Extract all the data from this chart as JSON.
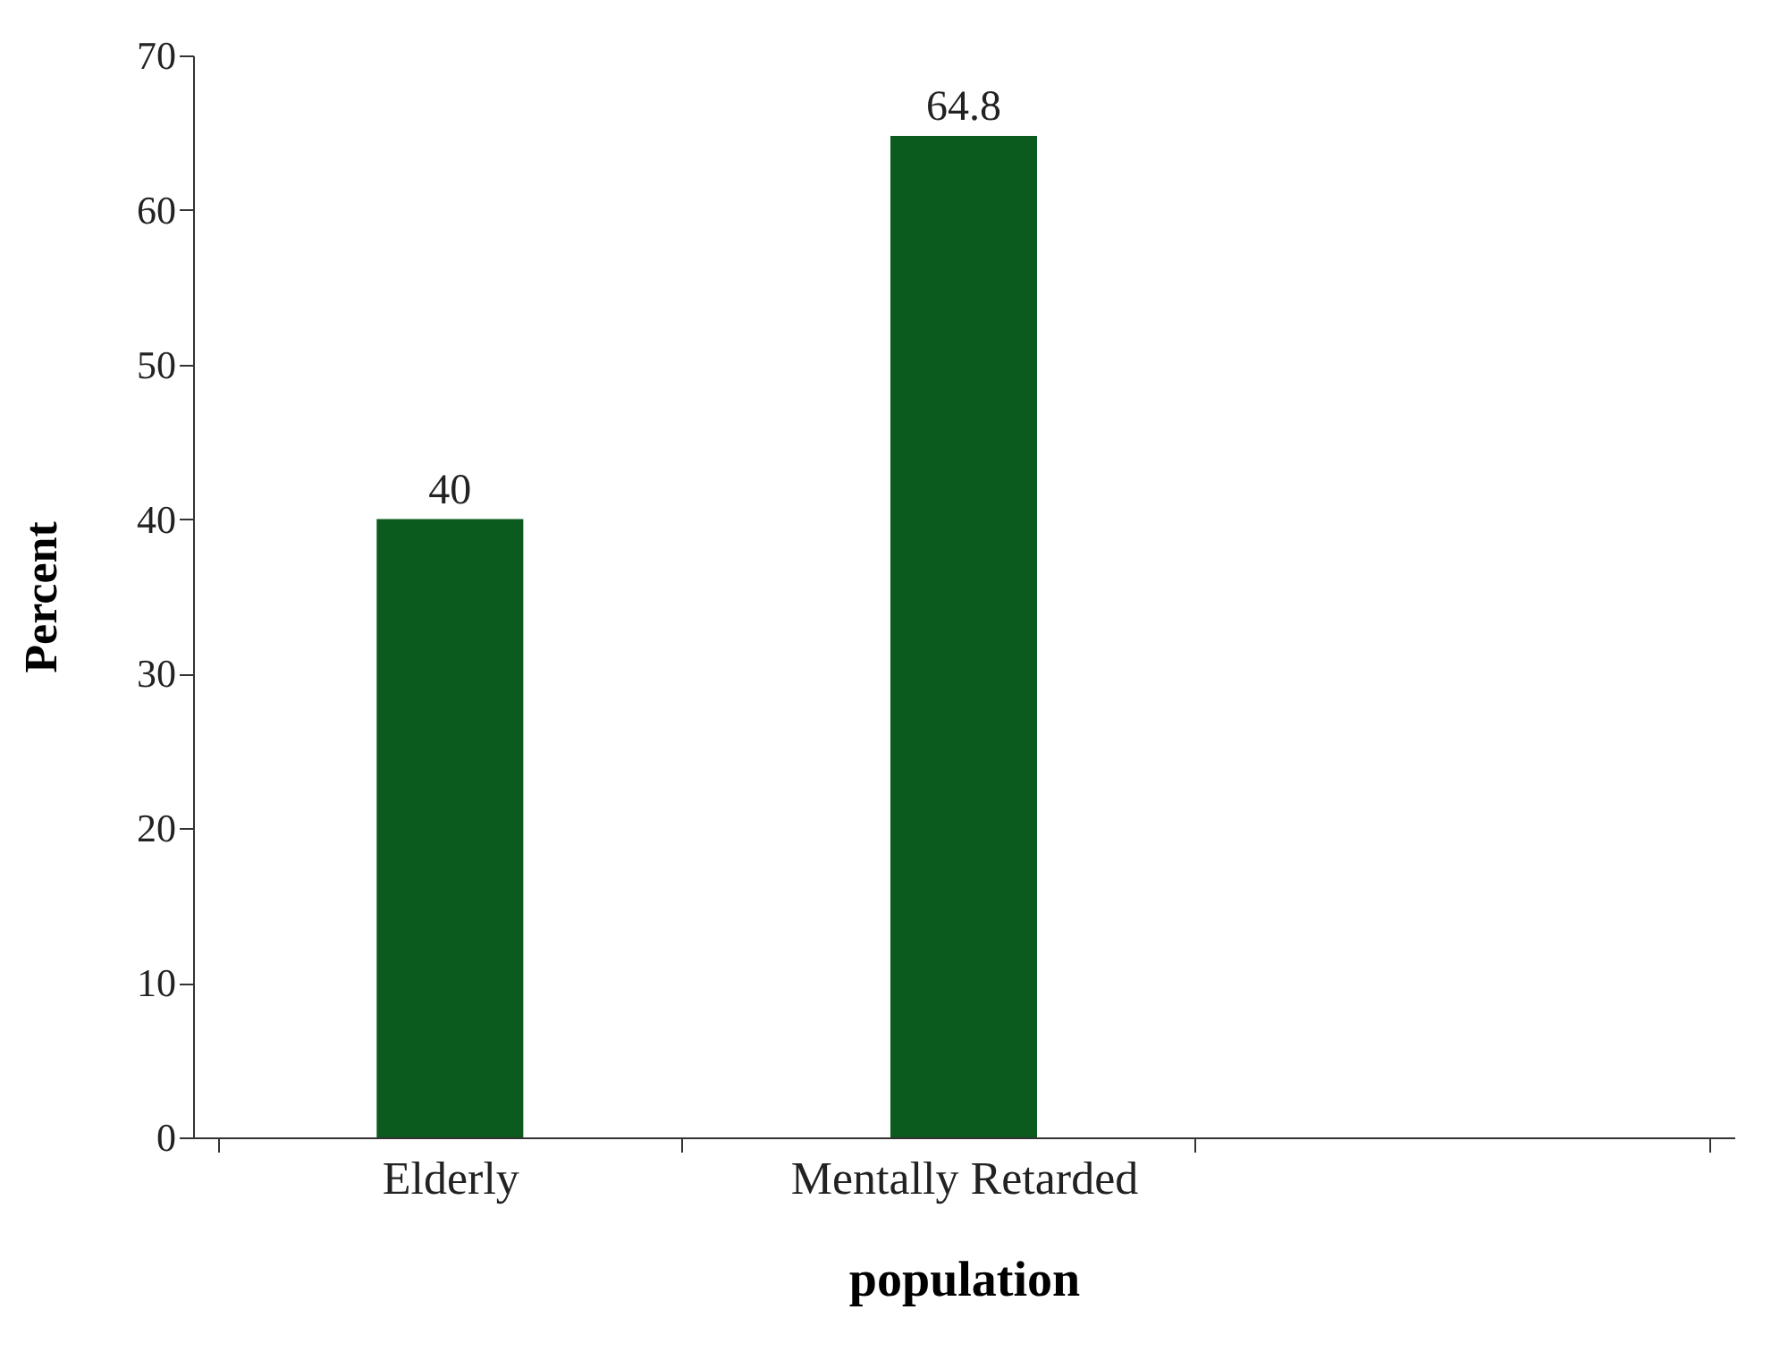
{
  "chart_data": {
    "type": "bar",
    "xlabel": "population",
    "ylabel": "Percent",
    "categories": [
      "Elderly",
      "Mentally Retarded",
      null
    ],
    "values": [
      40,
      64.8,
      null
    ],
    "color": "#0b5a1e",
    "ylim": [
      0,
      70
    ],
    "yticks": [
      0,
      10,
      20,
      30,
      40,
      50,
      60,
      70
    ],
    "grid": false,
    "data_labels": true
  }
}
